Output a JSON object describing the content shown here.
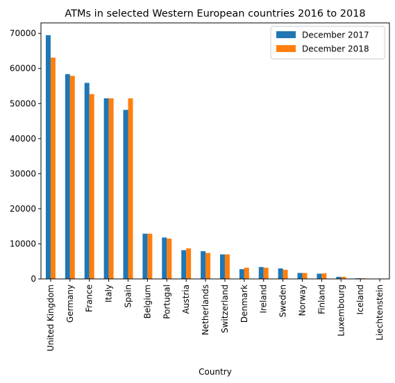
{
  "chart_data": {
    "type": "bar",
    "title": "ATMs in selected Western European countries 2016 to 2018",
    "xlabel": "Country",
    "ylabel": "",
    "ylim": [
      0,
      73000
    ],
    "yticks": [
      0,
      10000,
      20000,
      30000,
      40000,
      50000,
      60000,
      70000
    ],
    "grid": false,
    "legend_position": "top-right",
    "categories": [
      "United Kingdom",
      "Germany",
      "France",
      "Italy",
      "Spain",
      "Belgium",
      "Portugal",
      "Austria",
      "Netherlands",
      "Switzerland",
      "Denmark",
      "Ireland",
      "Sweden",
      "Norway",
      "Finland",
      "Luxembourg",
      "Iceland",
      "Liechtenstein"
    ],
    "series": [
      {
        "name": "December 2017",
        "color": "#1f77b4",
        "values": [
          69500,
          58400,
          55900,
          51500,
          48200,
          12900,
          11800,
          8200,
          7900,
          7000,
          2800,
          3400,
          3000,
          1700,
          1500,
          600,
          200,
          50
        ]
      },
      {
        "name": "December 2018",
        "color": "#ff7f0e",
        "values": [
          63100,
          57900,
          52700,
          51500,
          51500,
          12900,
          11500,
          8700,
          7400,
          7000,
          3200,
          3200,
          2600,
          1700,
          1600,
          600,
          200,
          50
        ]
      }
    ]
  }
}
